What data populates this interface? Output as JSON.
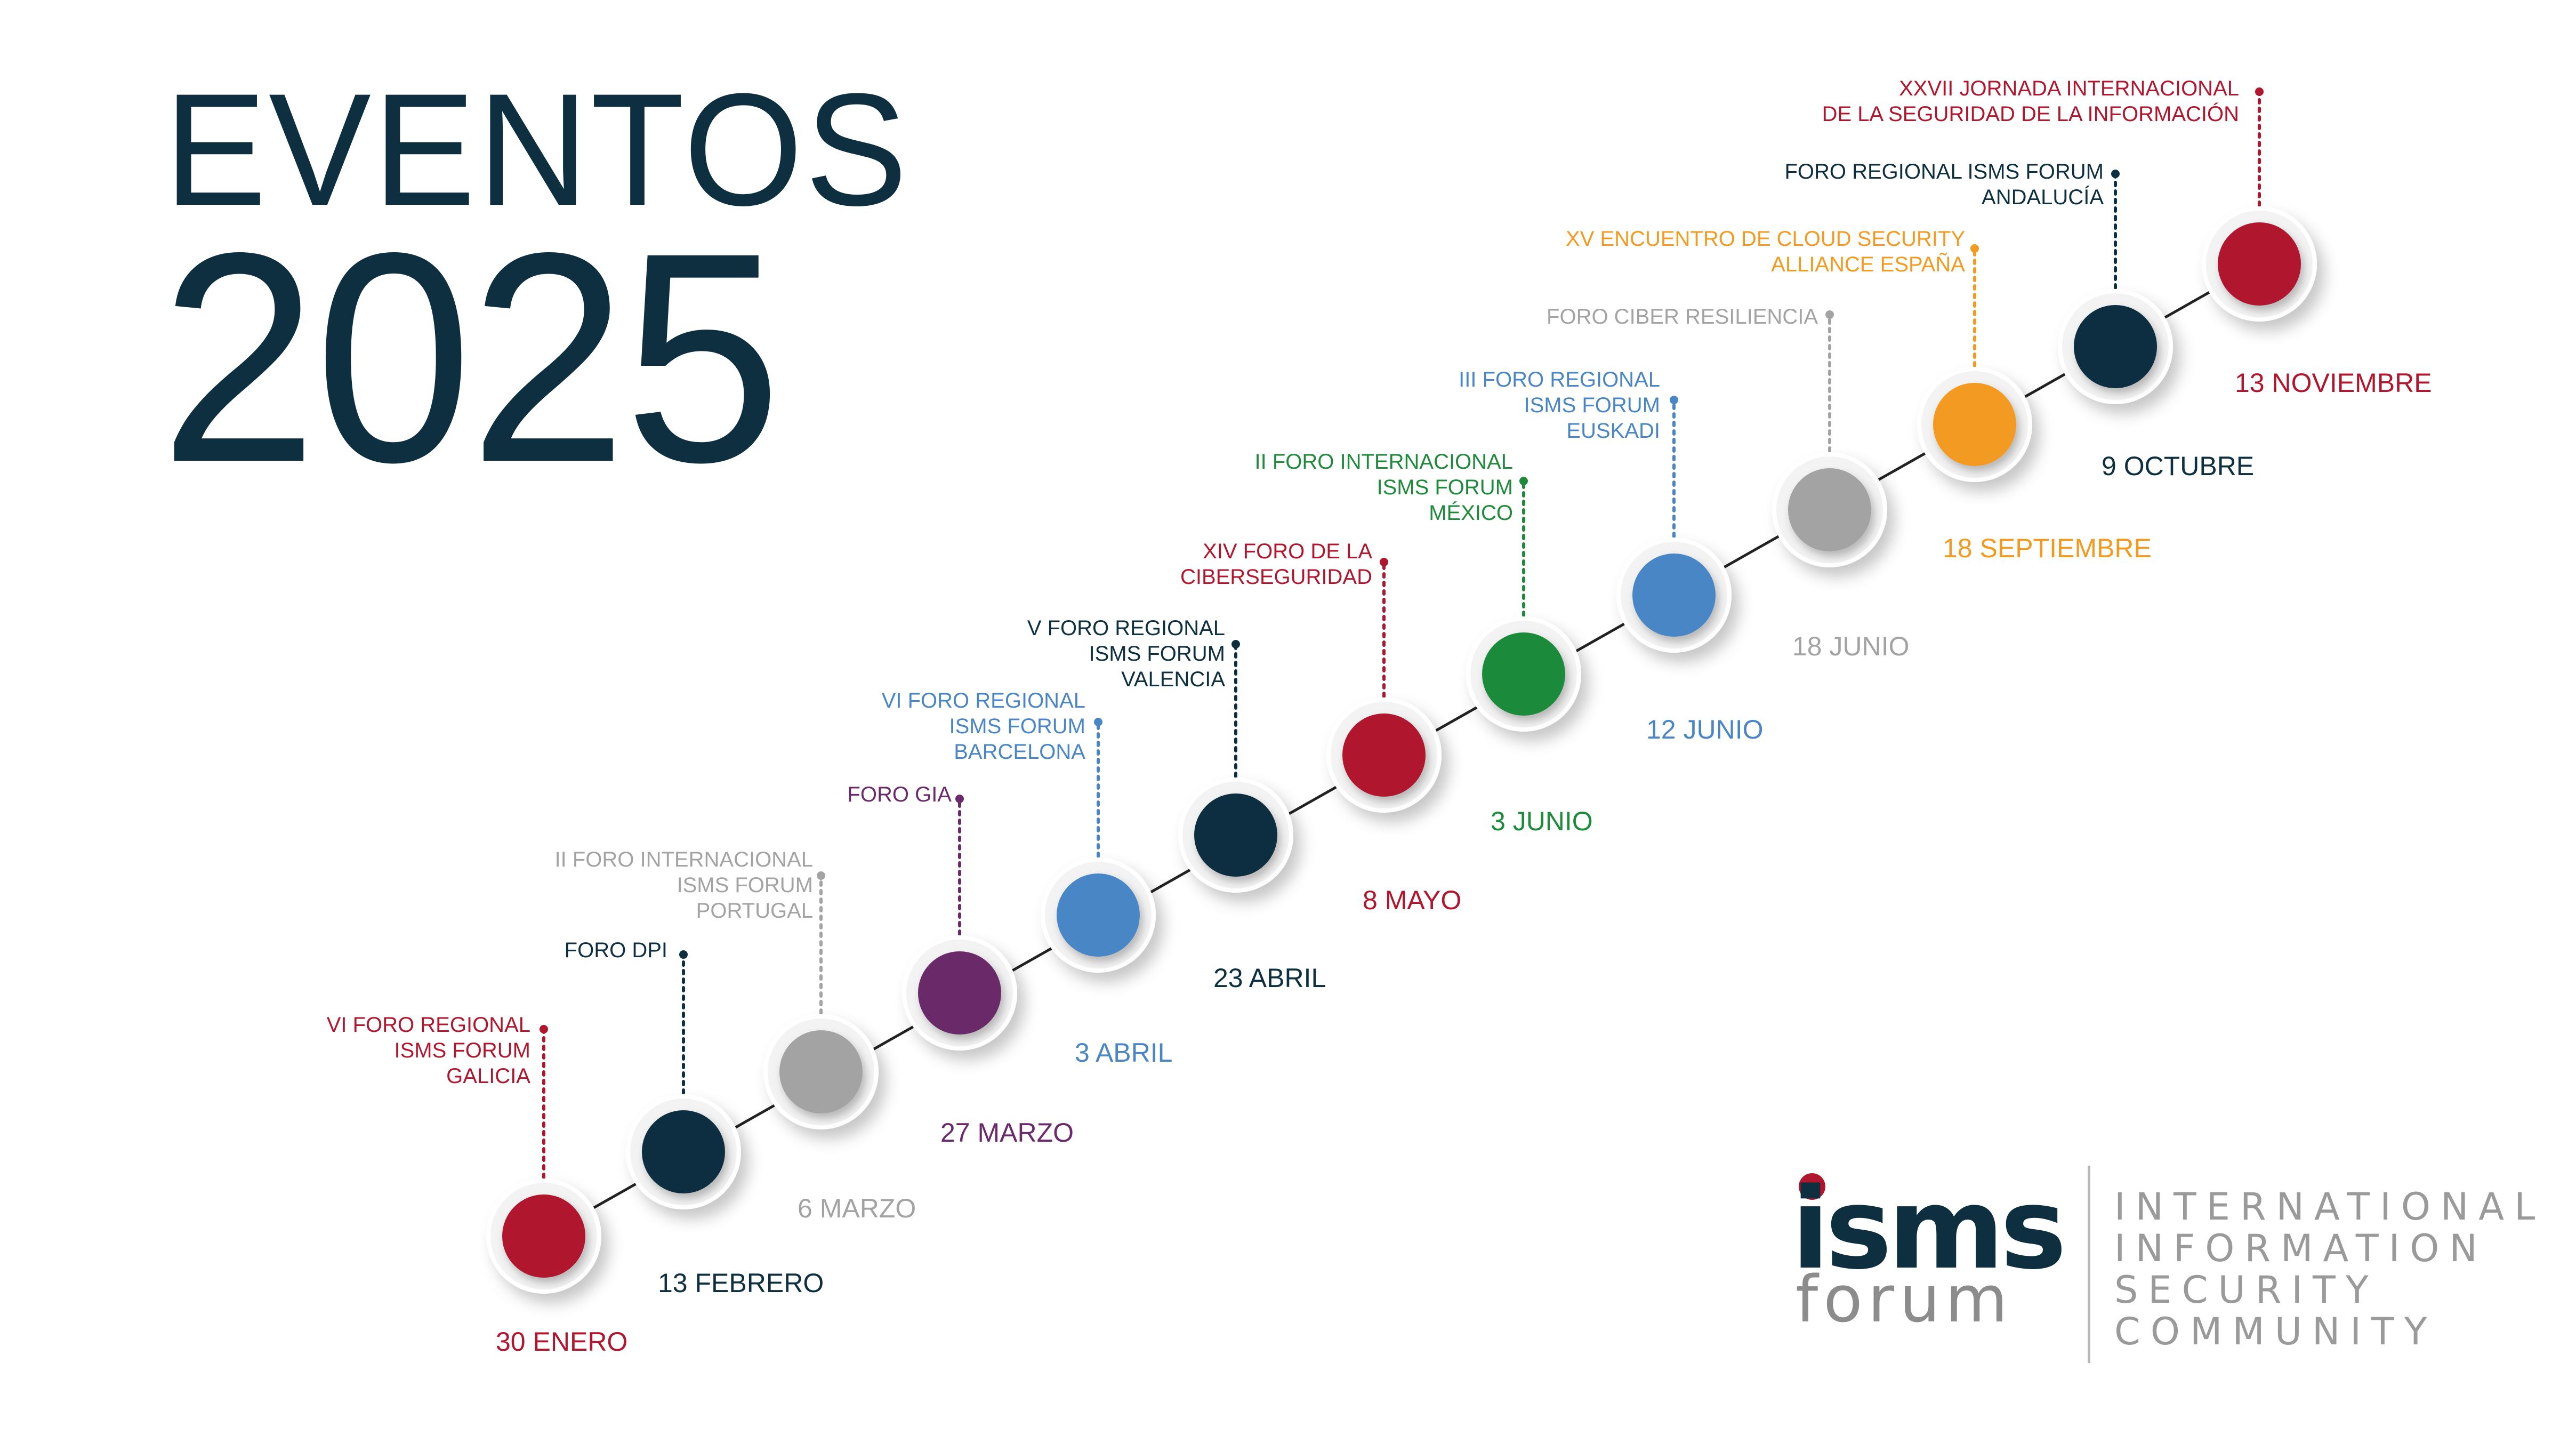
{
  "title": {
    "line1": "EVENTOS",
    "line2": "2025"
  },
  "colors": {
    "title": "#0e2f3f",
    "red": "#b0172e",
    "navy": "#0e2f3f",
    "gray": "#a3a3a3",
    "purple": "#6b2a6b",
    "blue": "#4a86c5",
    "green": "#1f8a3b",
    "orange": "#f39a21"
  },
  "events": [
    {
      "date": "30 ENERO",
      "title": [
        "VI FORO REGIONAL",
        "ISMS FORUM",
        "GALICIA"
      ],
      "color": "#b0172e"
    },
    {
      "date": "13 FEBRERO",
      "title": [
        "FORO DPI"
      ],
      "color": "#0e2f3f"
    },
    {
      "date": "6 MARZO",
      "title": [
        "II FORO INTERNACIONAL",
        "ISMS FORUM",
        "PORTUGAL"
      ],
      "color": "#a3a3a3"
    },
    {
      "date": "27 MARZO",
      "title": [
        "FORO GIA"
      ],
      "color": "#6b2a6b"
    },
    {
      "date": "3 ABRIL",
      "title": [
        "VI FORO REGIONAL",
        "ISMS FORUM",
        "BARCELONA"
      ],
      "color": "#4a86c5"
    },
    {
      "date": "23 ABRIL",
      "title": [
        "V FORO REGIONAL",
        "ISMS FORUM",
        "VALENCIA"
      ],
      "color": "#0e2f3f"
    },
    {
      "date": "8 MAYO",
      "title": [
        "XIV FORO DE LA",
        "CIBERSEGURIDAD"
      ],
      "color": "#b0172e"
    },
    {
      "date": "3 JUNIO",
      "title": [
        "II FORO INTERNACIONAL",
        "ISMS FORUM",
        "MÉXICO"
      ],
      "color": "#1f8a3b"
    },
    {
      "date": "12 JUNIO",
      "title": [
        "III FORO REGIONAL",
        "ISMS FORUM",
        "EUSKADI"
      ],
      "color": "#4a86c5"
    },
    {
      "date": "18 JUNIO",
      "title": [
        "FORO CIBER RESILIENCIA"
      ],
      "color": "#a3a3a3"
    },
    {
      "date": "18 SEPTIEMBRE",
      "title": [
        "XV ENCUENTRO DE CLOUD SECURITY",
        "ALLIANCE ESPAÑA"
      ],
      "color": "#f39a21"
    },
    {
      "date": "9 OCTUBRE",
      "title": [
        "FORO REGIONAL ISMS FORUM",
        "ANDALUCÍA"
      ],
      "color": "#0e2f3f"
    },
    {
      "date": "13 NOVIEMBRE",
      "title": [
        "XXVII JORNADA INTERNACIONAL",
        "DE LA SEGURIDAD DE LA INFORMACIÓN"
      ],
      "color": "#b0172e"
    }
  ],
  "logo": {
    "isms": "isms",
    "forum": "forum",
    "tagline": [
      "INTERNATIONAL",
      "INFORMATION",
      "SECURITY",
      "COMMUNITY"
    ]
  }
}
